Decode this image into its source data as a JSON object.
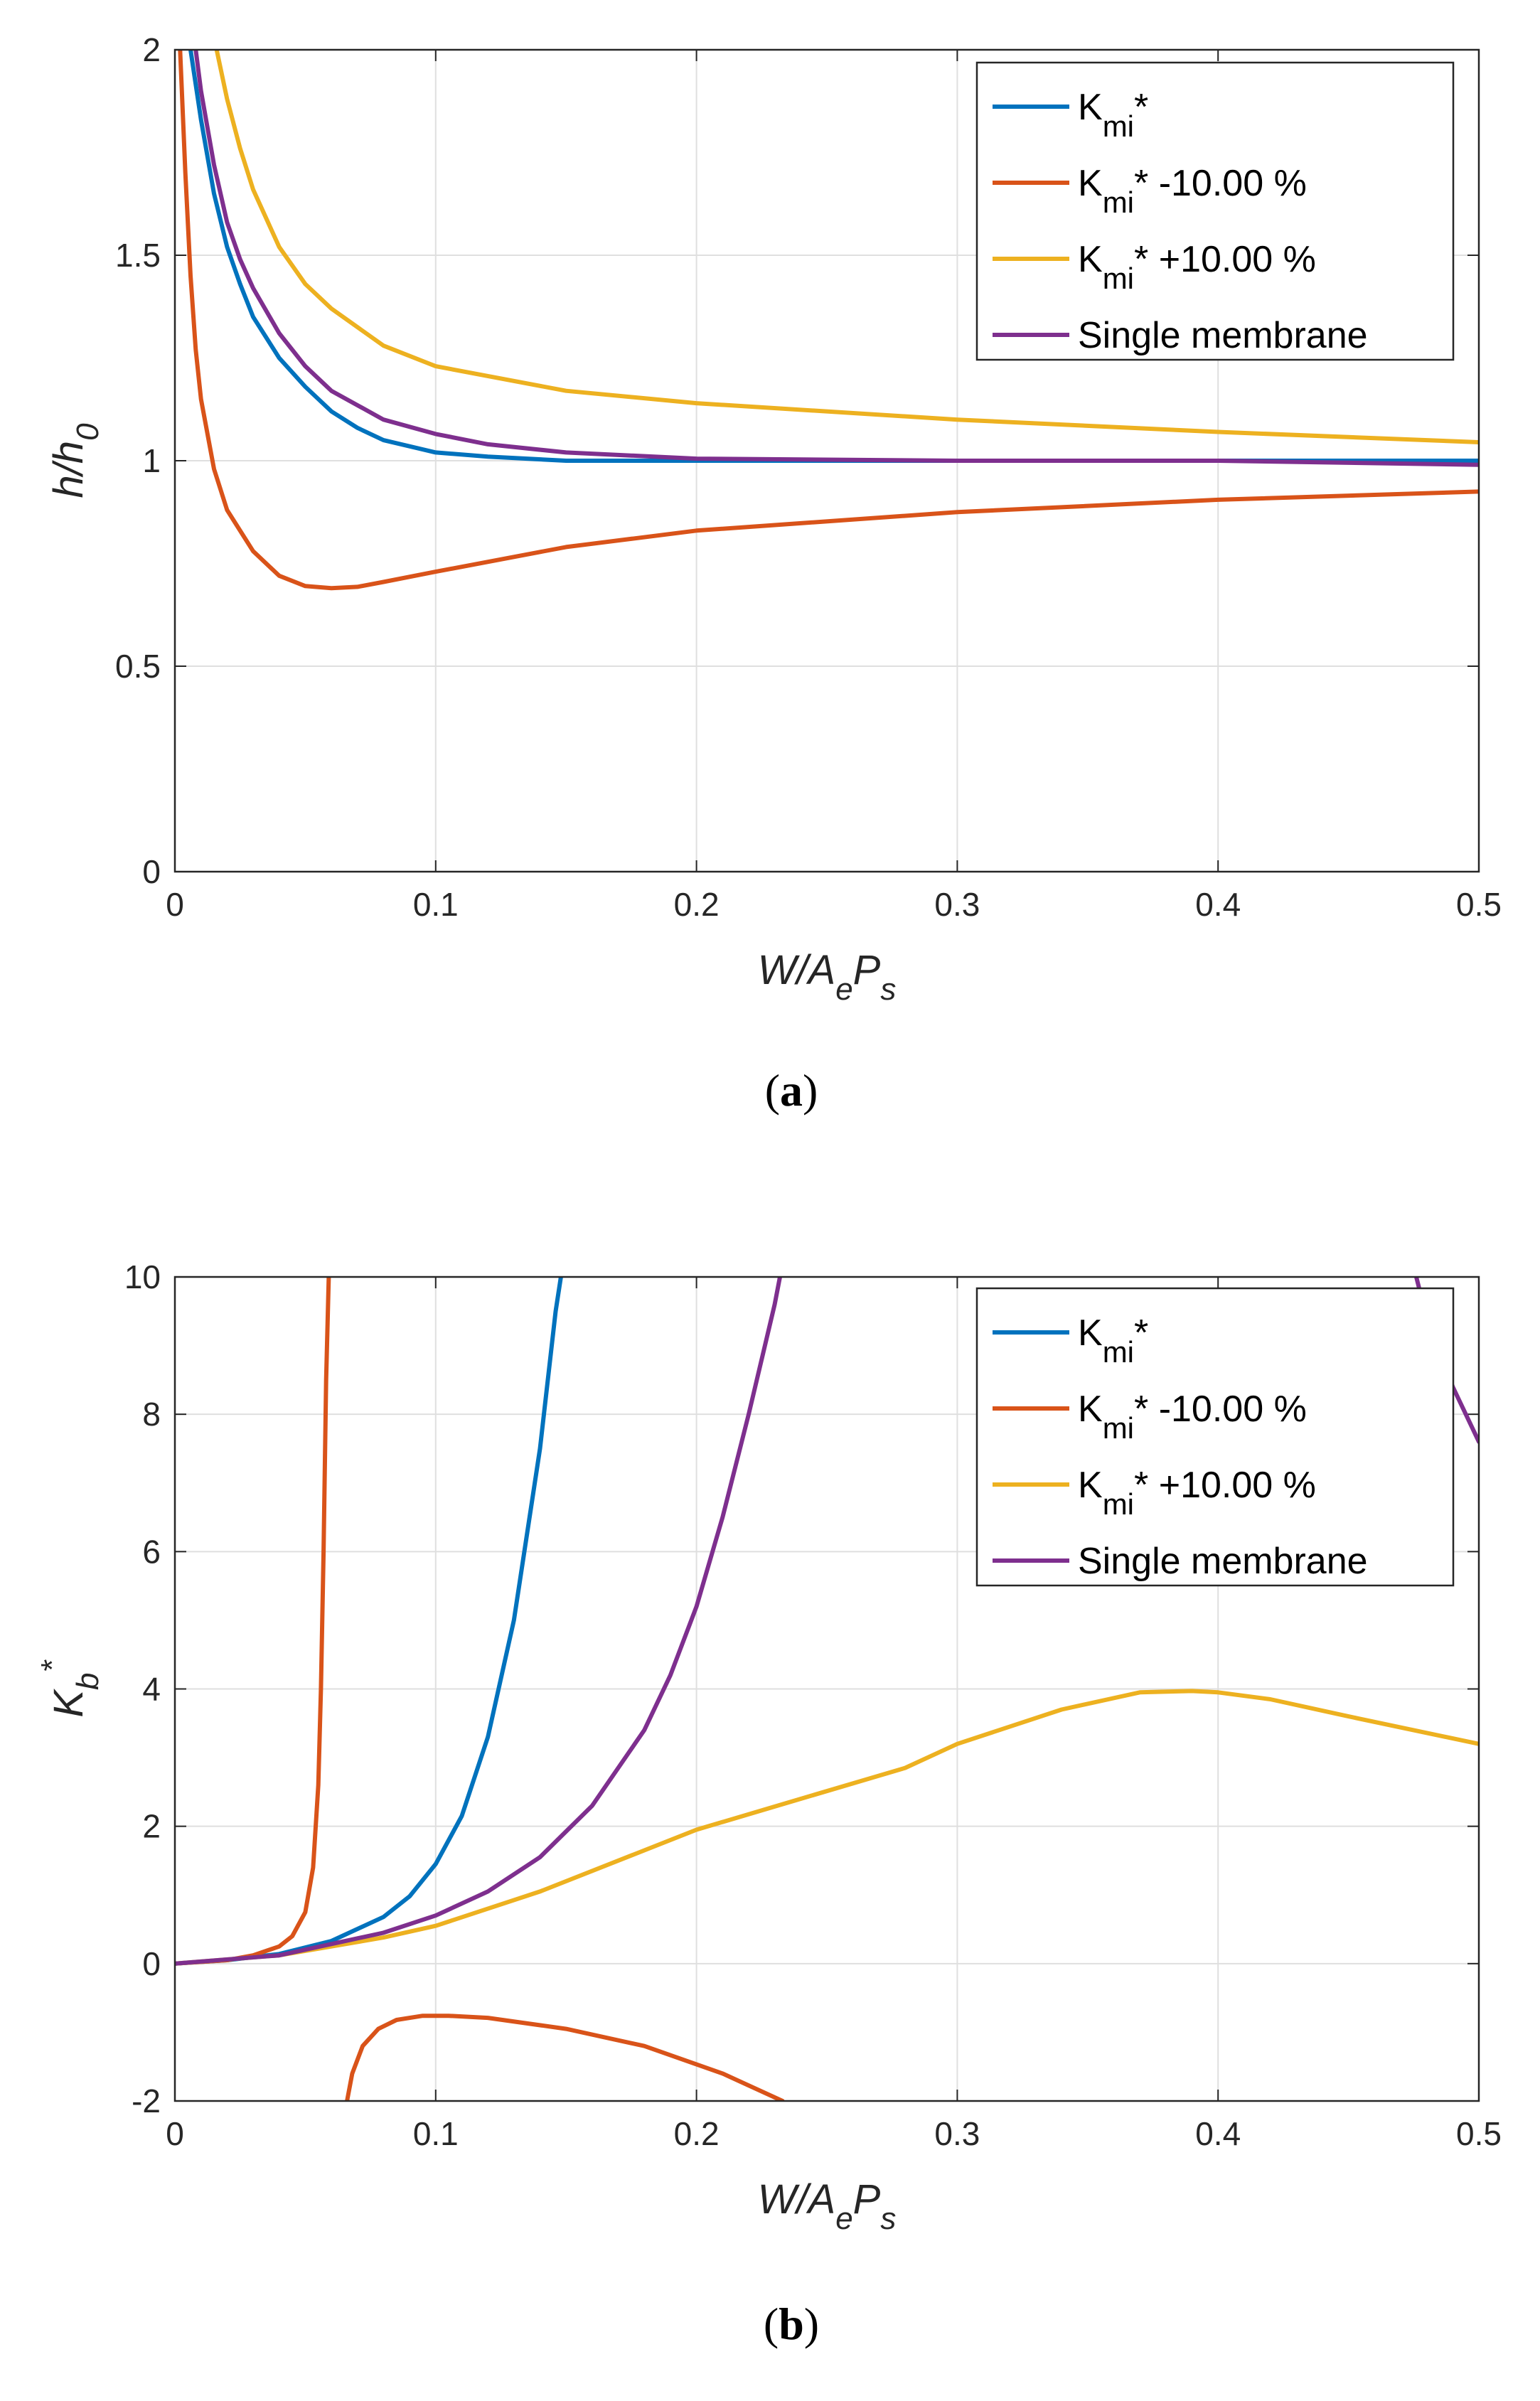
{
  "chart_data": [
    {
      "type": "line",
      "panel": "a",
      "caption_letter": "a",
      "xlabel": {
        "main": "W/A",
        "sub1": "e",
        "mid": "P",
        "sub2": "s"
      },
      "ylabel": {
        "main": "h/h",
        "sub": "0"
      },
      "xlim": [
        0,
        0.5
      ],
      "ylim": [
        0,
        2
      ],
      "xticks": [
        "0",
        "0.1",
        "0.2",
        "0.3",
        "0.4",
        "0.5"
      ],
      "yticks": [
        "0",
        "0.5",
        "1",
        "1.5",
        "2"
      ],
      "grid": true,
      "legend_position": "top-right",
      "series": [
        {
          "name": "K",
          "name_sub": "mi",
          "name_suffix": "*",
          "color": "#0072BD",
          "x": [
            0.006,
            0.01,
            0.015,
            0.02,
            0.025,
            0.03,
            0.04,
            0.05,
            0.06,
            0.07,
            0.08,
            0.1,
            0.12,
            0.15,
            0.2,
            0.3,
            0.4,
            0.5
          ],
          "y": [
            2.0,
            1.83,
            1.65,
            1.52,
            1.43,
            1.35,
            1.25,
            1.18,
            1.12,
            1.08,
            1.05,
            1.02,
            1.01,
            1.0,
            1.0,
            1.0,
            1.0,
            1.0
          ]
        },
        {
          "name": "K",
          "name_sub": "mi",
          "name_suffix": "* -10.00 %",
          "color": "#D95319",
          "x": [
            0.002,
            0.004,
            0.006,
            0.008,
            0.01,
            0.015,
            0.02,
            0.03,
            0.04,
            0.05,
            0.06,
            0.07,
            0.08,
            0.1,
            0.15,
            0.2,
            0.3,
            0.4,
            0.5
          ],
          "y": [
            2.0,
            1.7,
            1.45,
            1.27,
            1.15,
            0.98,
            0.88,
            0.78,
            0.72,
            0.695,
            0.69,
            0.693,
            0.705,
            0.73,
            0.79,
            0.83,
            0.875,
            0.905,
            0.925
          ]
        },
        {
          "name": "K",
          "name_sub": "mi",
          "name_suffix": "* +10.00 %",
          "color": "#EDB120",
          "x": [
            0.016,
            0.02,
            0.025,
            0.03,
            0.04,
            0.05,
            0.06,
            0.08,
            0.1,
            0.15,
            0.2,
            0.3,
            0.4,
            0.5
          ],
          "y": [
            2.0,
            1.88,
            1.76,
            1.66,
            1.52,
            1.43,
            1.37,
            1.28,
            1.23,
            1.17,
            1.14,
            1.1,
            1.07,
            1.045
          ]
        },
        {
          "name": "Single membrane",
          "color": "#7E2F8E",
          "x": [
            0.008,
            0.01,
            0.015,
            0.02,
            0.025,
            0.03,
            0.04,
            0.05,
            0.06,
            0.08,
            0.1,
            0.12,
            0.15,
            0.2,
            0.3,
            0.4,
            0.5
          ],
          "y": [
            2.0,
            1.9,
            1.72,
            1.58,
            1.49,
            1.42,
            1.31,
            1.23,
            1.17,
            1.1,
            1.065,
            1.04,
            1.02,
            1.005,
            1.0,
            1.0,
            0.99
          ]
        }
      ]
    },
    {
      "type": "line",
      "panel": "b",
      "caption_letter": "b",
      "xlabel": {
        "main": "W/A",
        "sub1": "e",
        "mid": "P",
        "sub2": "s"
      },
      "ylabel": {
        "main": "K",
        "sub": "b",
        "sup": "*"
      },
      "xlim": [
        0,
        0.5
      ],
      "ylim": [
        -2,
        10
      ],
      "xticks": [
        "0",
        "0.1",
        "0.2",
        "0.3",
        "0.4",
        "0.5"
      ],
      "yticks": [
        "-2",
        "0",
        "2",
        "4",
        "6",
        "8",
        "10"
      ],
      "grid": true,
      "legend_position": "top-right",
      "series": [
        {
          "name": "K",
          "name_sub": "mi",
          "name_suffix": "*",
          "color": "#0072BD",
          "x": [
            0.0,
            0.02,
            0.04,
            0.06,
            0.08,
            0.09,
            0.1,
            0.11,
            0.12,
            0.13,
            0.14,
            0.146,
            0.148
          ],
          "y": [
            0.0,
            0.05,
            0.14,
            0.33,
            0.68,
            0.98,
            1.45,
            2.15,
            3.3,
            5.0,
            7.5,
            9.5,
            10.0
          ]
        },
        {
          "name": "K",
          "name_sub": "mi",
          "name_suffix": "* -10.00 %",
          "color": "#D95319",
          "x": [
            0.0,
            0.02,
            0.03,
            0.04,
            0.045,
            0.05,
            0.053,
            0.055,
            0.056,
            0.057,
            0.058,
            0.059
          ],
          "y": [
            0.0,
            0.05,
            0.12,
            0.25,
            0.4,
            0.75,
            1.4,
            2.6,
            4.0,
            6.0,
            8.5,
            10.0
          ],
          "x2": [
            0.066,
            0.068,
            0.072,
            0.078,
            0.085,
            0.095,
            0.105,
            0.12,
            0.15,
            0.18,
            0.21,
            0.233
          ],
          "y2": [
            -2.0,
            -1.6,
            -1.2,
            -0.95,
            -0.82,
            -0.76,
            -0.76,
            -0.79,
            -0.95,
            -1.2,
            -1.6,
            -2.0
          ]
        },
        {
          "name": "K",
          "name_sub": "mi",
          "name_suffix": "* +10.00 %",
          "color": "#EDB120",
          "x": [
            0.0,
            0.04,
            0.08,
            0.1,
            0.14,
            0.18,
            0.2,
            0.24,
            0.28,
            0.3,
            0.34,
            0.37,
            0.39,
            0.4,
            0.42,
            0.45,
            0.5
          ],
          "y": [
            0.0,
            0.12,
            0.38,
            0.55,
            1.05,
            1.65,
            1.95,
            2.4,
            2.85,
            3.2,
            3.7,
            3.95,
            3.97,
            3.95,
            3.85,
            3.6,
            3.2
          ]
        },
        {
          "name": "Single membrane",
          "color": "#7E2F8E",
          "x": [
            0.0,
            0.04,
            0.08,
            0.1,
            0.12,
            0.14,
            0.16,
            0.18,
            0.19,
            0.2,
            0.21,
            0.22,
            0.23,
            0.232
          ],
          "y": [
            0.0,
            0.12,
            0.45,
            0.7,
            1.05,
            1.55,
            2.3,
            3.4,
            4.2,
            5.2,
            6.5,
            8.0,
            9.6,
            10.0
          ],
          "x2": [
            0.476,
            0.48,
            0.49,
            0.5
          ],
          "y2": [
            10.0,
            9.4,
            8.4,
            7.6
          ]
        }
      ]
    }
  ]
}
